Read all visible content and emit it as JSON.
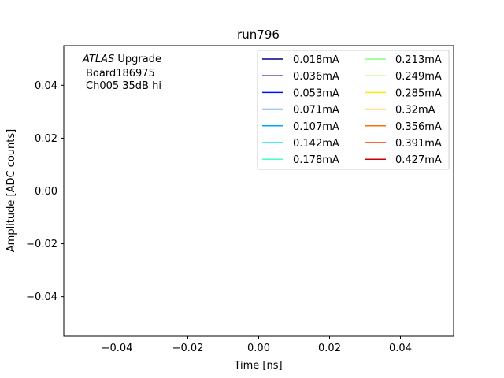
{
  "chart_data": {
    "type": "line",
    "title": "run796",
    "xlabel": "Time [ns]",
    "ylabel": "Amplitude [ADC counts]",
    "xlim": [
      -0.055,
      0.055
    ],
    "ylim": [
      -0.055,
      0.055
    ],
    "xticks": [
      -0.04,
      -0.02,
      0.0,
      0.02,
      0.04
    ],
    "xtick_labels": [
      "−0.04",
      "−0.02",
      "0.00",
      "0.02",
      "0.04"
    ],
    "yticks": [
      -0.04,
      -0.02,
      0.0,
      0.02,
      0.04
    ],
    "ytick_labels": [
      "−0.04",
      "−0.02",
      "0.00",
      "0.02",
      "0.04"
    ],
    "grid": false,
    "legend_placement": "top-right",
    "legend_columns": 2,
    "series": [
      {
        "name": "0.018mA",
        "color": "#00007f",
        "x": [],
        "y": []
      },
      {
        "name": "0.036mA",
        "color": "#0000c8",
        "x": [],
        "y": []
      },
      {
        "name": "0.053mA",
        "color": "#0010ff",
        "x": [],
        "y": []
      },
      {
        "name": "0.071mA",
        "color": "#0064ff",
        "x": [],
        "y": []
      },
      {
        "name": "0.107mA",
        "color": "#00a4ff",
        "x": [],
        "y": []
      },
      {
        "name": "0.142mA",
        "color": "#0de5f2",
        "x": [],
        "y": []
      },
      {
        "name": "0.178mA",
        "color": "#4dffc4",
        "x": [],
        "y": []
      },
      {
        "name": "0.213mA",
        "color": "#84ff8c",
        "x": [],
        "y": []
      },
      {
        "name": "0.249mA",
        "color": "#b7ff5a",
        "x": [],
        "y": []
      },
      {
        "name": "0.285mA",
        "color": "#ffea00",
        "x": [],
        "y": []
      },
      {
        "name": "0.32mA",
        "color": "#ffab00",
        "x": [],
        "y": []
      },
      {
        "name": "0.356mA",
        "color": "#ff6c00",
        "x": [],
        "y": []
      },
      {
        "name": "0.391mA",
        "color": "#ff2f00",
        "x": [],
        "y": []
      },
      {
        "name": "0.427mA",
        "color": "#c80000",
        "x": [],
        "y": []
      }
    ],
    "annotation": {
      "line1_italic": "ATLAS",
      "line1_rest": " Upgrade",
      "line2": "Board186975",
      "line3": "Ch005 35dB hi"
    }
  }
}
